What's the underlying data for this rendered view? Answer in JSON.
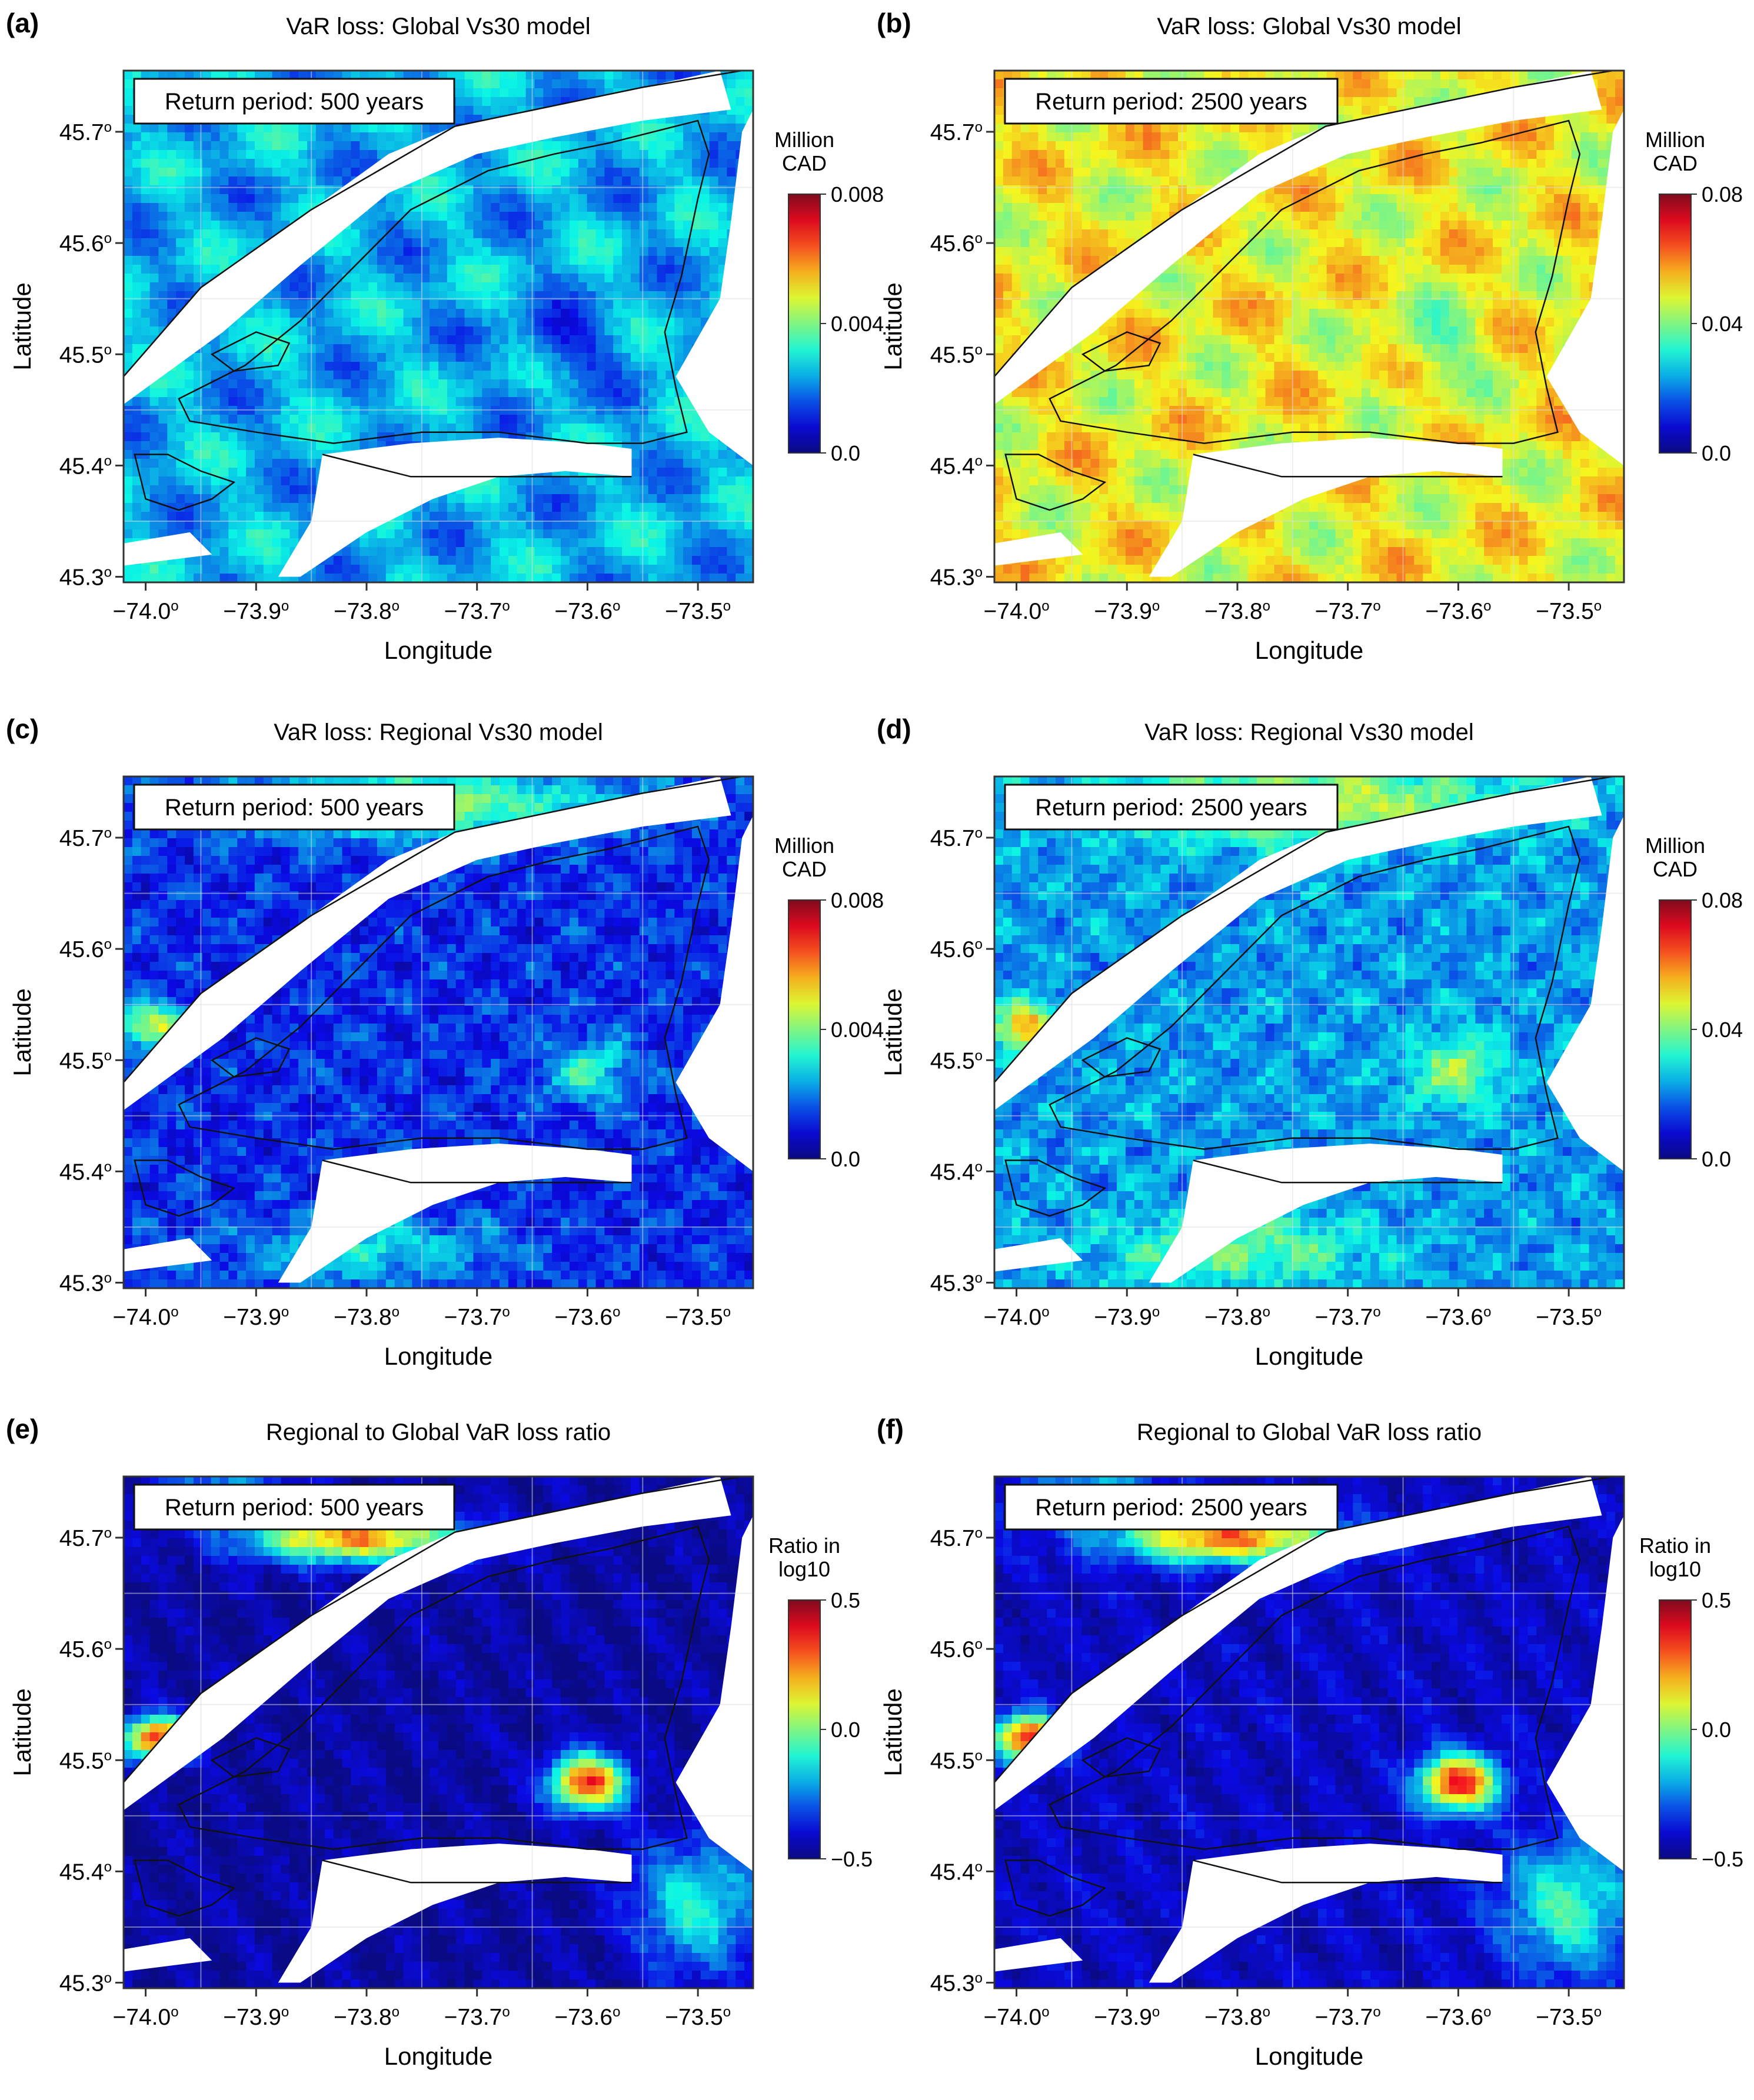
{
  "map_extent": {
    "lon": [
      -74.02,
      -73.45
    ],
    "lat": [
      45.295,
      45.755
    ]
  },
  "axes": {
    "x_ticks": [
      {
        "value": -74.0,
        "label": "−74.0"
      },
      {
        "value": -73.9,
        "label": "−73.9"
      },
      {
        "value": -73.8,
        "label": "−73.8"
      },
      {
        "value": -73.7,
        "label": "−73.7"
      },
      {
        "value": -73.6,
        "label": "−73.6"
      },
      {
        "value": -73.5,
        "label": "−73.5"
      }
    ],
    "y_ticks": [
      {
        "value": 45.3,
        "label": "45.3"
      },
      {
        "value": 45.4,
        "label": "45.4"
      },
      {
        "value": 45.5,
        "label": "45.5"
      },
      {
        "value": 45.6,
        "label": "45.6"
      },
      {
        "value": 45.7,
        "label": "45.7"
      }
    ],
    "degree_mark": "o",
    "xlabel": "Longitude",
    "ylabel": "Latitude"
  },
  "colormap": "jet",
  "panels": [
    {
      "letter": "(a)",
      "title": "VaR loss: Global Vs30 model",
      "return_period": "Return period: 500 years",
      "colorbar": {
        "title": [
          "Million",
          "CAD"
        ],
        "ticks": [
          "0.008",
          "0.004",
          "0.0"
        ]
      },
      "pattern": "global",
      "base_level": 0.3
    },
    {
      "letter": "(b)",
      "title": "VaR loss: Global Vs30 model",
      "return_period": "Return period: 2500 years",
      "colorbar": {
        "title": [
          "Million",
          "CAD"
        ],
        "ticks": [
          "0.08",
          "0.04",
          "0.0"
        ]
      },
      "pattern": "global",
      "base_level": 0.62
    },
    {
      "letter": "(c)",
      "title": "VaR loss: Regional Vs30 model",
      "return_period": "Return period: 500 years",
      "colorbar": {
        "title": [
          "Million",
          "CAD"
        ],
        "ticks": [
          "0.008",
          "0.004",
          "0.0"
        ]
      },
      "pattern": "regional",
      "base_level": 0.16
    },
    {
      "letter": "(d)",
      "title": "VaR loss: Regional Vs30 model",
      "return_period": "Return period: 2500 years",
      "colorbar": {
        "title": [
          "Million",
          "CAD"
        ],
        "ticks": [
          "0.08",
          "0.04",
          "0.0"
        ]
      },
      "pattern": "regional",
      "base_level": 0.28
    },
    {
      "letter": "(e)",
      "title": "Regional to Global VaR loss ratio",
      "return_period": "Return period: 500 years",
      "colorbar": {
        "title": [
          "Ratio in",
          "log10"
        ],
        "ticks": [
          "0.5",
          "0.0",
          "−0.5"
        ]
      },
      "pattern": "ratio",
      "base_level": 0.04
    },
    {
      "letter": "(f)",
      "title": "Regional to Global VaR loss ratio",
      "return_period": "Return period: 2500 years",
      "colorbar": {
        "title": [
          "Ratio in",
          "log10"
        ],
        "ticks": [
          "0.5",
          "0.0",
          "−0.5"
        ]
      },
      "pattern": "ratio",
      "base_level": 0.08
    }
  ]
}
